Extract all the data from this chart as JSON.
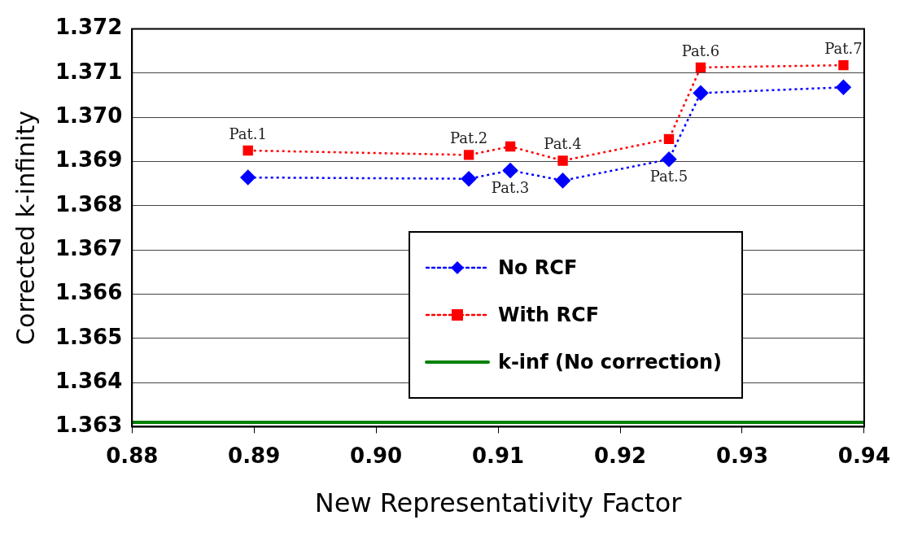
{
  "chart_data": {
    "type": "line",
    "xlabel": "New Representativity Factor",
    "ylabel": "Corrected k-infinity",
    "xlim": [
      0.88,
      0.94
    ],
    "xticks": [
      0.88,
      0.89,
      {
        "value": 0.9,
        "label": "0.90"
      },
      0.91,
      0.92,
      0.93,
      0.94
    ],
    "ylim": [
      1.363,
      1.372
    ],
    "yticks": [
      1.363,
      1.364,
      1.365,
      1.366,
      1.367,
      1.368,
      1.369,
      {
        "value": 1.37,
        "label": "1.370"
      },
      1.371,
      1.372
    ],
    "grid": "y",
    "legend": "bottom right",
    "series": [
      {
        "name": "No RCF",
        "color": "#0000ff",
        "marker": "diamond",
        "line_style": "dotted",
        "x": [
          0.8895,
          0.9076,
          0.911,
          0.9153,
          0.924,
          0.9266,
          0.9383
        ],
        "values": [
          1.36864,
          1.36861,
          1.3688,
          1.36857,
          1.36905,
          1.37055,
          1.37068
        ]
      },
      {
        "name": "With RCF",
        "color": "#ff0000",
        "marker": "square",
        "line_style": "dotted",
        "x": [
          0.8895,
          0.9076,
          0.911,
          0.9153,
          0.924,
          0.9266,
          0.9383
        ],
        "values": [
          1.36925,
          1.36915,
          1.36934,
          1.36902,
          1.36951,
          1.37113,
          1.37118
        ]
      },
      {
        "name": "k-inf (No correction)",
        "color": "#008000",
        "marker": "none",
        "line_style": "solid",
        "x": [
          0.88,
          0.94
        ],
        "values": [
          1.3631,
          1.3631
        ]
      }
    ],
    "annotations": [
      {
        "text": "Pat.1",
        "x": 0.8895,
        "y": 1.36925
      },
      {
        "text": "Pat.2",
        "x": 0.9076,
        "y": 1.36915
      },
      {
        "text": "Pat.3",
        "x": 0.911,
        "y": 1.3688
      },
      {
        "text": "Pat.4",
        "x": 0.9153,
        "y": 1.36902
      },
      {
        "text": "Pat.5",
        "x": 0.924,
        "y": 1.36905
      },
      {
        "text": "Pat.6",
        "x": 0.9266,
        "y": 1.37113
      },
      {
        "text": "Pat.7",
        "x": 0.9383,
        "y": 1.37118
      }
    ]
  }
}
